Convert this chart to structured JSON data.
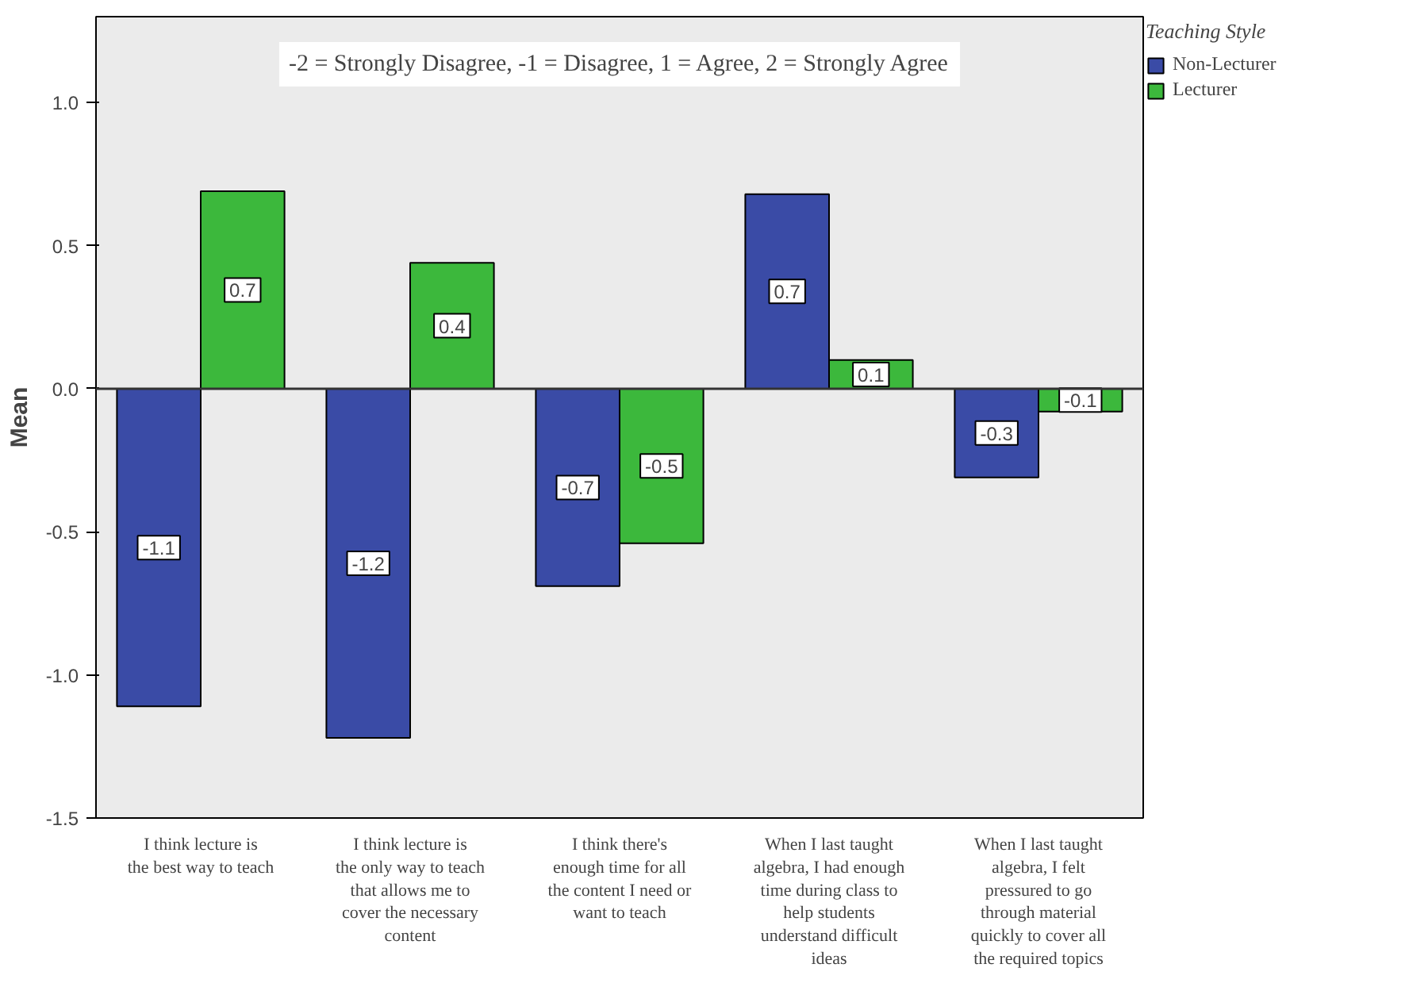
{
  "chart_data": {
    "type": "bar",
    "ylabel": "Mean",
    "legend_title": "Teaching Style",
    "legend": "top right",
    "grid": false,
    "categories": [
      "I think lecture is the best way to teach",
      "I think lecture is the only way to teach that allows me to cover the necessary content",
      "I think there's enough time for all the content I need or want to teach",
      "When I last taught algebra, I had enough time during class to help students understand difficult ideas",
      "When I last taught algebra, I felt pressured to go through material quickly to cover all the required topics"
    ],
    "series": [
      {
        "name": "Non-Lecturer",
        "color": "#3a4ba6",
        "values": [
          -1.11,
          -1.22,
          -0.69,
          0.68,
          -0.31
        ],
        "value_labels": [
          "-1.1",
          "-1.2",
          "-0.7",
          "0.7",
          "-0.3"
        ]
      },
      {
        "name": "Lecturer",
        "color": "#3cb83c",
        "values": [
          0.69,
          0.44,
          -0.54,
          0.1,
          -0.08
        ],
        "value_labels": [
          "0.7",
          "0.4",
          "-0.5",
          "0.1",
          "-0.1"
        ]
      }
    ],
    "ylim": [
      -1.5,
      1.3
    ],
    "yticks": [
      {
        "value": -1.5,
        "label": "-1.5"
      },
      {
        "value": -1.0,
        "label": "-1.0"
      },
      {
        "value": -0.5,
        "label": "-0.5"
      },
      {
        "value": 0.0,
        "label": "0.0"
      },
      {
        "value": 0.5,
        "label": "0.5"
      },
      {
        "value": 1.0,
        "label": "1.0"
      }
    ],
    "ref_lines": [
      {
        "axis": "y",
        "value": 0,
        "color": "#333333"
      }
    ],
    "annotations": [
      "-2 = Strongly Disagree, -1 = Disagree, 1 = Agree, 2 = Strongly Agree"
    ]
  }
}
